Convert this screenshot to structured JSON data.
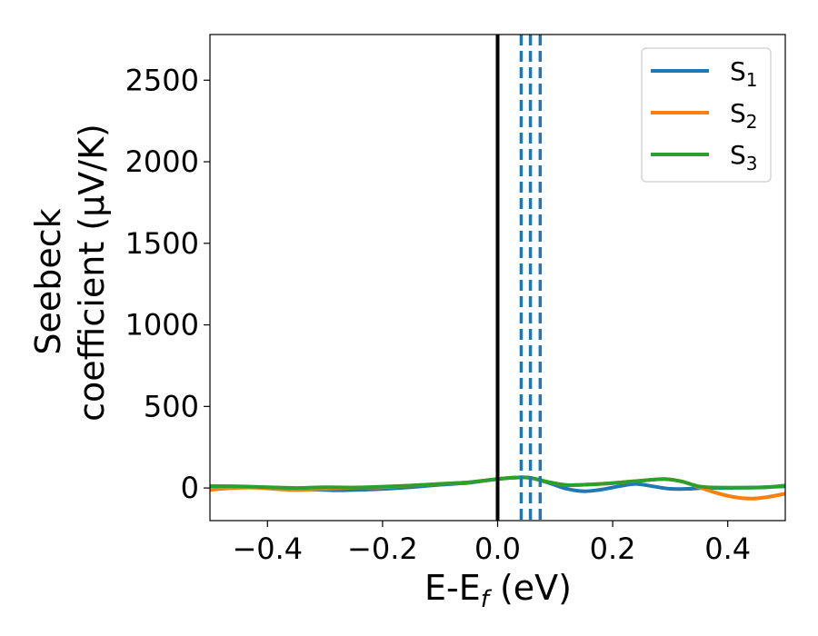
{
  "chart_data": {
    "type": "line",
    "xlabel": "E-E",
    "xlabel_sub": "f",
    "xlabel_unit": " (eV)",
    "ylabel_line1": "Seebeck",
    "ylabel_line2": "coefficient  (μV/K)",
    "xlim": [
      -0.5,
      0.5
    ],
    "ylim": [
      -200,
      2780
    ],
    "xticks": [
      -0.4,
      -0.2,
      0.0,
      0.2,
      0.4
    ],
    "xtick_labels": [
      "−0.4",
      "−0.2",
      "0.0",
      "0.2",
      "0.4"
    ],
    "yticks": [
      0,
      500,
      1000,
      1500,
      2000,
      2500
    ],
    "ytick_labels": [
      "0",
      "500",
      "1000",
      "1500",
      "2000",
      "2500"
    ],
    "grid": false,
    "legend_position": "top-right",
    "fermi_line": {
      "x": 0.0,
      "color": "#000000"
    },
    "vlines_dashed": {
      "x": [
        0.041,
        0.057,
        0.074
      ],
      "color": "#1f77b4"
    },
    "series": [
      {
        "name": "S",
        "sub": "1",
        "color": "#1f77b4",
        "x": [
          -0.5,
          -0.45,
          -0.4,
          -0.35,
          -0.3,
          -0.27,
          -0.2,
          -0.15,
          -0.1,
          -0.05,
          0.0,
          0.04,
          0.06,
          0.09,
          0.12,
          0.15,
          0.18,
          0.21,
          0.24,
          0.27,
          0.3,
          0.33,
          0.36,
          0.4,
          0.45,
          0.5
        ],
        "y": [
          10,
          8,
          2,
          -6,
          -12,
          -14,
          -6,
          5,
          20,
          32,
          55,
          65,
          60,
          30,
          -5,
          -20,
          -10,
          10,
          25,
          10,
          -5,
          -5,
          0,
          0,
          3,
          10
        ]
      },
      {
        "name": "S",
        "sub": "2",
        "color": "#ff7f0e",
        "x": [
          -0.5,
          -0.46,
          -0.42,
          -0.38,
          -0.35,
          -0.3,
          -0.25,
          -0.2,
          -0.15,
          -0.1,
          -0.05,
          0.0,
          0.04,
          0.06,
          0.09,
          0.12,
          0.15,
          0.2,
          0.25,
          0.29,
          0.32,
          0.35,
          0.38,
          0.41,
          0.44,
          0.47,
          0.5
        ],
        "y": [
          -12,
          0,
          2,
          -8,
          -12,
          -5,
          2,
          5,
          15,
          25,
          35,
          55,
          65,
          60,
          35,
          18,
          20,
          30,
          45,
          55,
          40,
          5,
          -30,
          -55,
          -65,
          -55,
          -35
        ]
      },
      {
        "name": "S",
        "sub": "3",
        "color": "#2ca02c",
        "x": [
          -0.5,
          -0.45,
          -0.4,
          -0.35,
          -0.3,
          -0.25,
          -0.2,
          -0.15,
          -0.1,
          -0.05,
          0.0,
          0.04,
          0.06,
          0.09,
          0.12,
          0.15,
          0.2,
          0.25,
          0.29,
          0.32,
          0.35,
          0.38,
          0.42,
          0.46,
          0.5
        ],
        "y": [
          12,
          10,
          5,
          0,
          5,
          3,
          8,
          15,
          25,
          35,
          55,
          65,
          60,
          35,
          18,
          20,
          30,
          45,
          55,
          40,
          10,
          3,
          2,
          3,
          15
        ]
      }
    ]
  }
}
